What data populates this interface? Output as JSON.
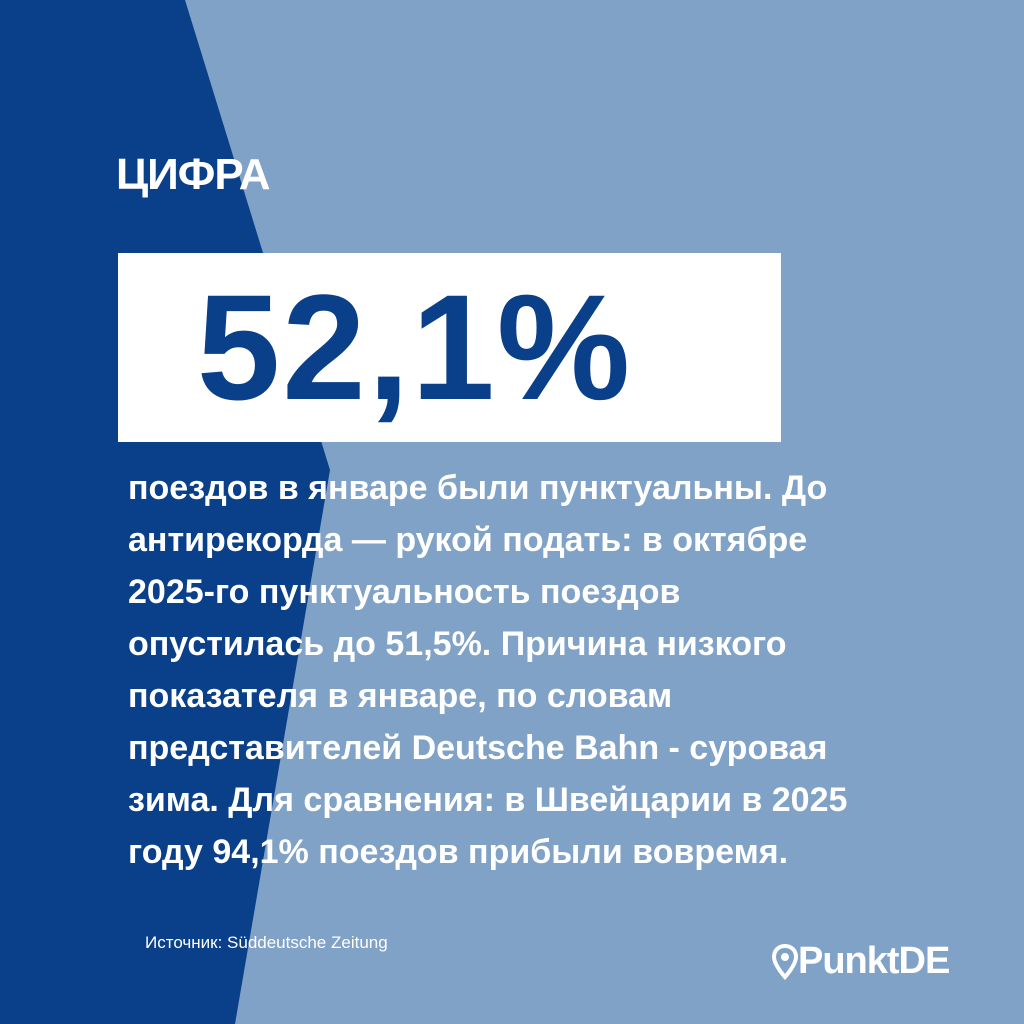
{
  "label": "ЦИФРА",
  "headline": "52,1%",
  "body": [
    "поездов в январе были пунктуальны. До",
    "антирекорда — рукой подать: в октябре",
    "2025-го пунктуальность поездов",
    "опустилась до 51,5%. Причина низкого",
    "показателя в январе, по словам",
    "представителей Deutsche Bahn - суровая",
    "зима. Для сравнения: в Швейцарии в 2025",
    "году 94,1% поездов прибыли вовремя."
  ],
  "source": "Источник: Süddeutsche Zeitung",
  "brand": "PunktDE"
}
